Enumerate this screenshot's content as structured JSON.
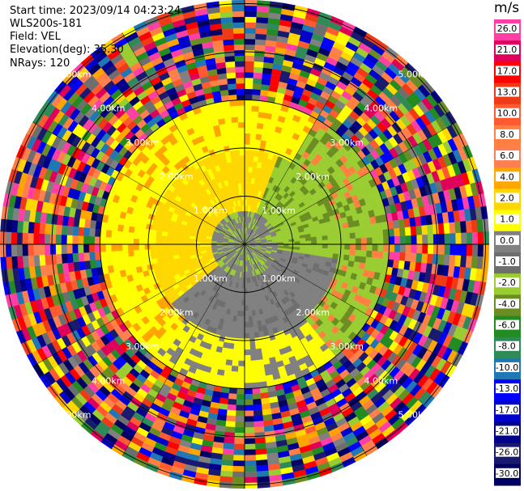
{
  "info": {
    "start_time": "Start time: 2023/09/14 04:23:24",
    "instrument": "WLS200s-181",
    "field": "Field: VEL",
    "elevation": "Elevation(deg): 35.30",
    "nrays": "NRays: 120"
  },
  "colorbar": {
    "unit": "m/s",
    "ticks": [
      "26.0",
      "21.0",
      "17.0",
      "13.0",
      "10.0",
      "8.0",
      "6.0",
      "4.0",
      "2.0",
      "1.0",
      "0.0",
      "-1.0",
      "-2.0",
      "-4.0",
      "-6.0",
      "-8.0",
      "-10.0",
      "-13.0",
      "-17.0",
      "-21.0",
      "-26.0",
      "-30.0"
    ],
    "colors": [
      "#ff3fa6",
      "#e0005a",
      "#ff0000",
      "#ee3a16",
      "#ff5a30",
      "#ff8040",
      "#ff7f50",
      "#ffa500",
      "#ffd700",
      "#ffff00",
      "#808080",
      "#6e6e6e",
      "#9acd32",
      "#6b8e23",
      "#228b22",
      "#2e8b57",
      "#1f77b4",
      "#0000ff",
      "#0000cd",
      "#00008b",
      "#191970",
      "#000060"
    ]
  },
  "chart_data": {
    "type": "heatmap",
    "title": "",
    "projection": "polar (PPI)",
    "range_rings_km": [
      "1.00km",
      "2.00km",
      "3.00km",
      "4.00km",
      "5.00km"
    ],
    "n_rays": 120,
    "field": "VEL",
    "unit": "m/s",
    "value_range": [
      -30,
      26
    ],
    "range_extent_km": 5.0,
    "notes_visible_pattern": {
      "inner_south_sector": "near-zero (gray)",
      "inner_east_sector": "negative light (olive/yellow-green)",
      "inner_west_sector": "positive light (yellow)",
      "outer_ranges": "noisy mixed values"
    }
  }
}
